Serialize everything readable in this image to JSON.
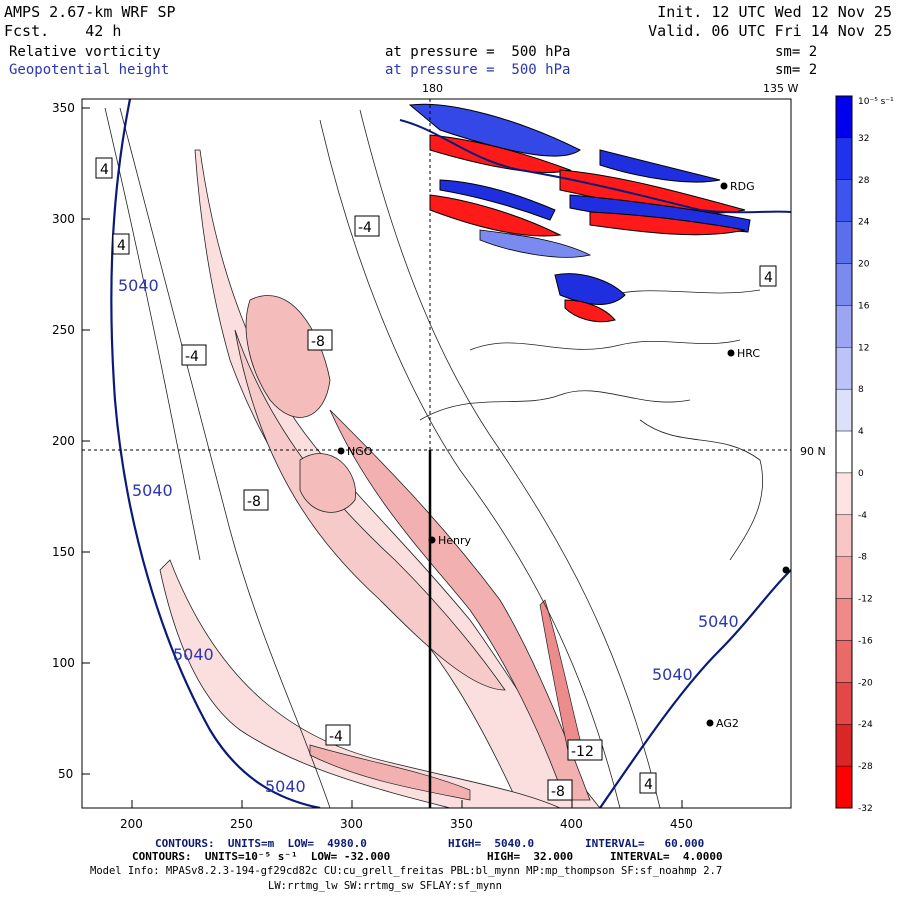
{
  "header": {
    "left1": "AMPS 2.67-km WRF SP",
    "left2": "Fcst.    42 h",
    "right1": "Init. 12 UTC Wed 12 Nov 25",
    "right2": "Valid. 06 UTC Fri 14 Nov 25",
    "field1": "Relative vorticity",
    "field1_level": "at pressure =  500 hPa",
    "field1_sm": "sm= 2",
    "field2": "Geopotential height",
    "field2_level": "at pressure =  500 hPa",
    "field2_sm": "sm= 2"
  },
  "map": {
    "top_label_lon": "180",
    "top_label_right": "135 W",
    "right_label_lat": "90 N",
    "x_ticks": [
      "200",
      "250",
      "300",
      "350",
      "400",
      "450"
    ],
    "y_ticks": [
      "350",
      "300",
      "250",
      "200",
      "150",
      "100",
      "50"
    ],
    "stations": [
      {
        "name": "RDG",
        "x": 470,
        "y": 314
      },
      {
        "name": "HRC",
        "x": 470,
        "y": 238
      },
      {
        "name": "NGO",
        "x": 292,
        "y": 195
      },
      {
        "name": "Henry",
        "x": 333,
        "y": 155
      },
      {
        "name": "AG2",
        "x": 461,
        "y": 72
      }
    ],
    "height_labels": [
      "5040",
      "5040",
      "5040",
      "5040",
      "5040",
      "5040"
    ],
    "vort_labels": [
      "4",
      "-4",
      "-8",
      "-12",
      "-8"
    ]
  },
  "colorbar": {
    "unit": "10⁻⁵ s⁻¹",
    "labels": [
      "32",
      "28",
      "24",
      "20",
      "16",
      "12",
      "8",
      "4",
      "0",
      "-4",
      "-8",
      "-12",
      "-16",
      "-20",
      "-24",
      "-28",
      "-32"
    ],
    "colors": [
      "#0000ee",
      "#1f33ee",
      "#3d55ee",
      "#5a6fee",
      "#7a8aef",
      "#9ba5f2",
      "#bcc3f6",
      "#dde0fa",
      "#ffffff",
      "#fde3e3",
      "#f9c6c6",
      "#f5a8a8",
      "#f08a8a",
      "#ea6a6a",
      "#e24848",
      "#da2626",
      "#ff0000"
    ]
  },
  "footer": {
    "line1_a": "CONTOURS:  UNITS=m  LOW=  4980.0",
    "line1_b": "HIGH=  5040.0",
    "line1_c": "INTERVAL=   60.000",
    "line2_a": "CONTOURS:  UNITS=10⁻⁵ s⁻¹  LOW= -32.000",
    "line2_b": "HIGH=  32.000",
    "line2_c": "INTERVAL=  4.0000",
    "line3": "Model Info: MPASv8.2.3-194-gf29cd82c CU:cu_grell_freitas PBL:bl_mynn MP:mp_thompson SF:sf_noahmp 2.7",
    "line4": "LW:rrtmg_lw SW:rrtmg_sw SFLAY:sf_mynn"
  }
}
